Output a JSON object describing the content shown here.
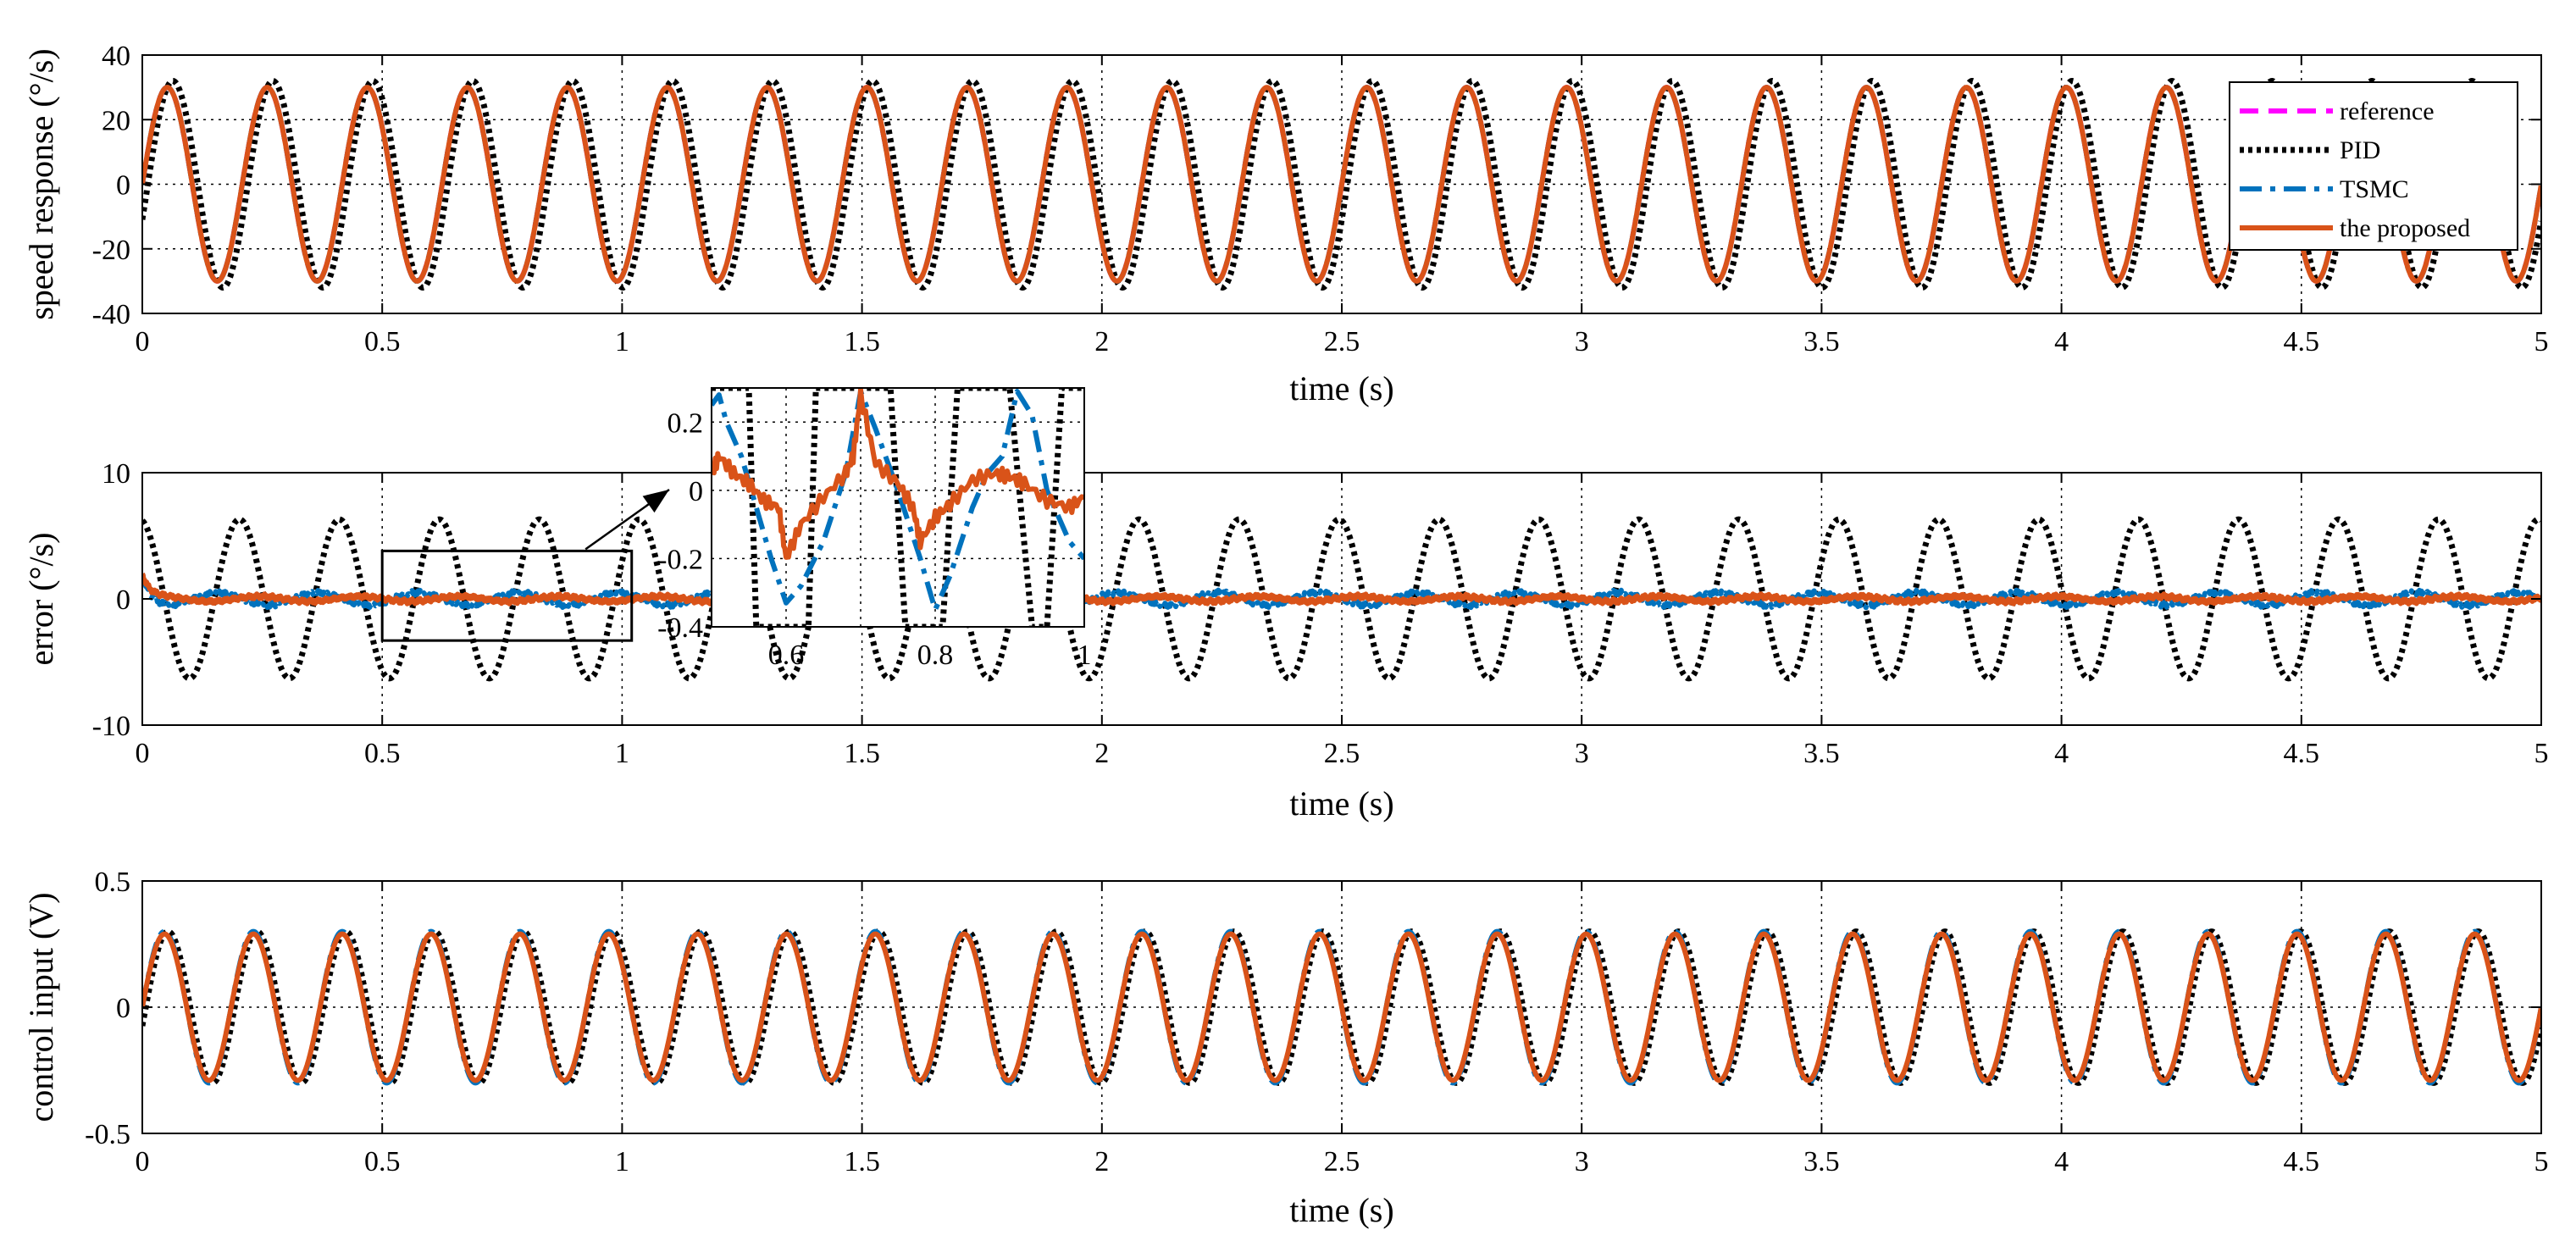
{
  "colors": {
    "reference": "#ff00ff",
    "pid": "#000000",
    "tsmc": "#0072bd",
    "proposed": "#d95319",
    "grid": "#000000",
    "background": "#ffffff"
  },
  "legend": {
    "placement": "top-right of top panel",
    "entries": [
      {
        "key": "reference",
        "label": "reference",
        "style": "dashed"
      },
      {
        "key": "pid",
        "label": "PID",
        "style": "dotted"
      },
      {
        "key": "tsmc",
        "label": "TSMC",
        "style": "dash-dot"
      },
      {
        "key": "proposed",
        "label": "the proposed",
        "style": "solid"
      }
    ]
  },
  "chart_data": [
    {
      "id": "speed",
      "type": "line",
      "xlabel": "time (s)",
      "ylabel": "speed response (°/s)",
      "xlim": [
        0,
        5
      ],
      "ylim": [
        -40,
        40
      ],
      "xticks": [
        0,
        0.5,
        1,
        1.5,
        2,
        2.5,
        3,
        3.5,
        4,
        4.5,
        5
      ],
      "xtick_labels": [
        "0",
        "0.5",
        "1",
        "1.5",
        "2",
        "2.5",
        "3",
        "3.5",
        "4",
        "4.5",
        "5"
      ],
      "yticks": [
        -40,
        -20,
        0,
        20,
        40
      ],
      "ytick_labels": [
        "-40",
        "-20",
        "0",
        "20",
        "40"
      ],
      "grid": true,
      "series": [
        {
          "key": "reference",
          "name": "reference",
          "amplitude": 30,
          "frequency_hz": 4.8,
          "phase_rad": 0
        },
        {
          "key": "pid",
          "name": "PID",
          "amplitude": 32,
          "frequency_hz": 4.8,
          "phase_rad": -0.35
        },
        {
          "key": "tsmc",
          "name": "TSMC",
          "amplitude": 30,
          "frequency_hz": 4.8,
          "phase_rad": 0
        },
        {
          "key": "proposed",
          "name": "the proposed",
          "amplitude": 30,
          "frequency_hz": 4.8,
          "phase_rad": 0
        }
      ]
    },
    {
      "id": "error",
      "type": "line",
      "xlabel": "time (s)",
      "ylabel": "error (°/s)",
      "xlim": [
        0,
        5
      ],
      "ylim": [
        -10,
        10
      ],
      "xticks": [
        0,
        0.5,
        1,
        1.5,
        2,
        2.5,
        3,
        3.5,
        4,
        4.5,
        5
      ],
      "xtick_labels": [
        "0",
        "0.5",
        "1",
        "1.5",
        "2",
        "2.5",
        "3",
        "3.5",
        "4",
        "4.5",
        "5"
      ],
      "yticks": [
        -10,
        0,
        10
      ],
      "ytick_labels": [
        "-10",
        "0",
        "10"
      ],
      "grid": true,
      "series": [
        {
          "key": "pid",
          "name": "PID",
          "amplitude": 6.3,
          "frequency_hz": 4.8,
          "phase_rad": 1.75
        },
        {
          "key": "tsmc",
          "name": "TSMC",
          "amplitude": 0.5,
          "frequency_hz": 4.8,
          "phase_rad": 3.1,
          "initial_value": 2.0
        },
        {
          "key": "proposed",
          "name": "the proposed",
          "amplitude": 0.2,
          "frequency_hz": 4.8,
          "phase_rad": 0.5,
          "initial_value": 2.0
        }
      ],
      "zoom_region": {
        "x": [
          0.5,
          1.02
        ],
        "y": [
          -3.3,
          3.8
        ]
      },
      "inset": {
        "xlim": [
          0.5,
          1
        ],
        "ylim": [
          -0.4,
          0.3
        ],
        "xticks": [
          0.6,
          0.8,
          1
        ],
        "xtick_labels": [
          "0.6",
          "0.8",
          "1"
        ],
        "yticks": [
          -0.4,
          -0.2,
          0,
          0.2
        ],
        "ytick_labels": [
          "-0.4",
          "-0.2",
          "0",
          "0.2"
        ],
        "grid": true,
        "series": [
          {
            "key": "pid",
            "name": "PID",
            "x": [
              0.5,
              0.53,
              0.55,
              0.56,
              0.6,
              0.63,
              0.64,
              0.7,
              0.74,
              0.76,
              0.77,
              0.81,
              0.83,
              0.85,
              0.9,
              0.93,
              0.95,
              0.97,
              1.0
            ],
            "y": [
              0.3,
              0.3,
              0.3,
              -0.4,
              -0.4,
              -0.4,
              0.3,
              0.3,
              0.3,
              -0.4,
              -0.4,
              -0.4,
              0.3,
              0.3,
              0.3,
              -0.4,
              -0.4,
              0.3,
              0.3
            ]
          },
          {
            "key": "tsmc",
            "name": "TSMC",
            "x": [
              0.5,
              0.51,
              0.52,
              0.54,
              0.56,
              0.58,
              0.6,
              0.62,
              0.65,
              0.68,
              0.7,
              0.72,
              0.75,
              0.78,
              0.8,
              0.82,
              0.85,
              0.87,
              0.89,
              0.91,
              0.93,
              0.95,
              0.98,
              1.0
            ],
            "y": [
              0.25,
              0.28,
              0.2,
              0.1,
              -0.05,
              -0.2,
              -0.33,
              -0.28,
              -0.15,
              0.05,
              0.29,
              0.18,
              0.0,
              -0.2,
              -0.35,
              -0.25,
              -0.05,
              0.05,
              0.1,
              0.29,
              0.22,
              0.0,
              -0.15,
              -0.2
            ]
          },
          {
            "key": "proposed",
            "name": "the proposed",
            "x": [
              0.5,
              0.51,
              0.53,
              0.55,
              0.57,
              0.59,
              0.6,
              0.62,
              0.65,
              0.68,
              0.69,
              0.7,
              0.72,
              0.75,
              0.77,
              0.78,
              0.8,
              0.82,
              0.85,
              0.88,
              0.9,
              0.92,
              0.95,
              0.98,
              1.0
            ],
            "y": [
              0.05,
              0.1,
              0.05,
              0.02,
              -0.03,
              -0.05,
              -0.2,
              -0.1,
              -0.02,
              0.05,
              0.1,
              0.28,
              0.08,
              0.02,
              -0.05,
              -0.15,
              -0.08,
              -0.04,
              0.03,
              0.05,
              0.04,
              0.02,
              -0.03,
              -0.05,
              -0.02
            ]
          }
        ]
      }
    },
    {
      "id": "control",
      "type": "line",
      "xlabel": "time (s)",
      "ylabel": "control input (V)",
      "xlim": [
        0,
        5
      ],
      "ylim": [
        -0.5,
        0.5
      ],
      "xticks": [
        0,
        0.5,
        1,
        1.5,
        2,
        2.5,
        3,
        3.5,
        4,
        4.5,
        5
      ],
      "xtick_labels": [
        "0",
        "0.5",
        "1",
        "1.5",
        "2",
        "2.5",
        "3",
        "3.5",
        "4",
        "4.5",
        "5"
      ],
      "yticks": [
        -0.5,
        0,
        0.5
      ],
      "ytick_labels": [
        "-0.5",
        "0",
        "0.5"
      ],
      "grid": true,
      "series": [
        {
          "key": "pid",
          "name": "PID",
          "amplitude": 0.3,
          "frequency_hz": 5.4,
          "phase_rad": -0.25
        },
        {
          "key": "tsmc",
          "name": "TSMC",
          "amplitude": 0.3,
          "frequency_hz": 5.4,
          "phase_rad": 0
        },
        {
          "key": "proposed",
          "name": "the proposed",
          "amplitude": 0.29,
          "frequency_hz": 5.4,
          "phase_rad": 0
        }
      ]
    }
  ]
}
